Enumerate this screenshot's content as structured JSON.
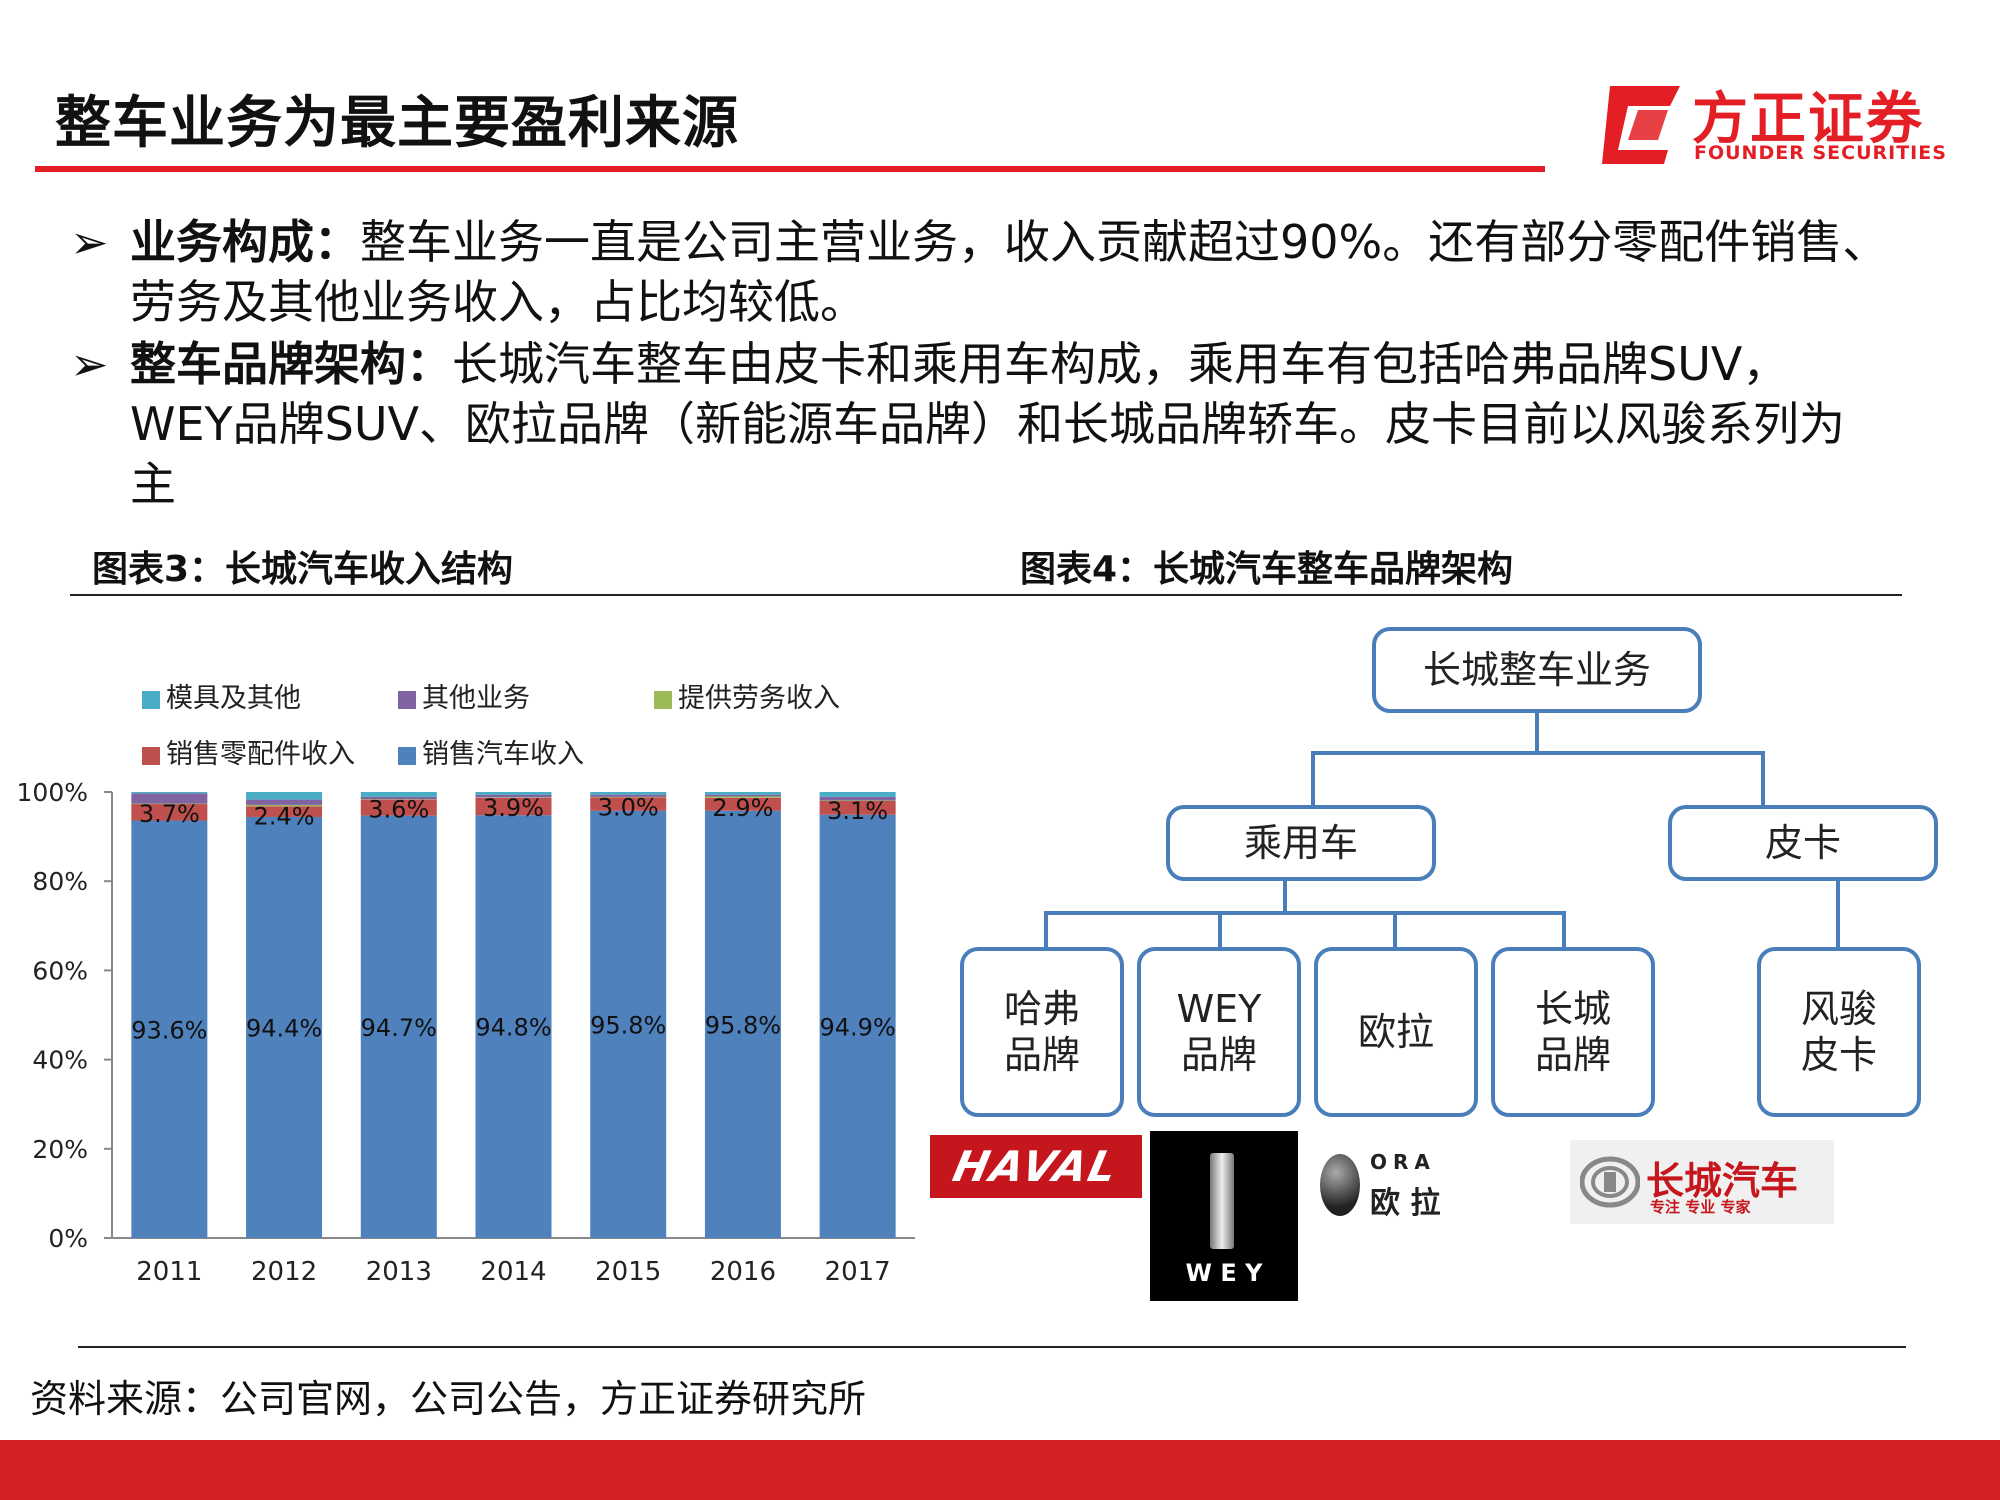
{
  "header": {
    "title": "整车业务为最主要盈利来源"
  },
  "logo": {
    "name": "方正证券",
    "subtitle": "FOUNDER SECURITIES"
  },
  "bullets": [
    {
      "marker": "➢",
      "heading": "业务构成：",
      "text": "整车业务一直是公司主营业务，收入贡献超过90%。还有部分零配件销售、劳务及其他业务收入，占比均较低。"
    },
    {
      "marker": "➢",
      "heading": "整车品牌架构：",
      "text": "长城汽车整车由皮卡和乘用车构成，乘用车有包括哈弗品牌SUV，WEY品牌SUV、欧拉品牌（新能源车品牌）和长城品牌轿车。皮卡目前以风骏系列为主"
    }
  ],
  "figure3": {
    "caption": "图表3：长城汽车收入结构"
  },
  "figure4": {
    "caption": "图表4：长城汽车整车品牌架构"
  },
  "chart_data": {
    "type": "bar",
    "stacked": true,
    "categories": [
      "2011",
      "2012",
      "2013",
      "2014",
      "2015",
      "2016",
      "2017"
    ],
    "series": [
      {
        "name": "销售汽车收入",
        "values": [
          93.6,
          94.4,
          94.7,
          94.8,
          95.8,
          95.8,
          94.9
        ],
        "labels": [
          "93.6%",
          "94.4%",
          "94.7%",
          "94.8%",
          "95.8%",
          "95.8%",
          "94.9%"
        ],
        "color": "#4f81bd"
      },
      {
        "name": "销售零配件收入",
        "values": [
          3.7,
          2.4,
          3.6,
          3.9,
          3.0,
          2.9,
          3.1
        ],
        "labels": [
          "3.7%",
          "2.4%",
          "3.6%",
          "3.9%",
          "3.0%",
          "2.9%",
          "3.1%"
        ],
        "color": "#c0504d"
      },
      {
        "name": "提供劳务收入",
        "values": [
          0.1,
          0.3,
          0.1,
          0.1,
          0.1,
          0.3,
          0.1
        ],
        "color": "#9bbb59"
      },
      {
        "name": "其他业务",
        "values": [
          2.3,
          1.2,
          0.5,
          0.6,
          0.5,
          0.4,
          0.8
        ],
        "color": "#8064a2"
      },
      {
        "name": "模具及其他",
        "values": [
          0.3,
          1.7,
          1.1,
          0.6,
          0.6,
          0.6,
          1.1
        ],
        "color": "#4bacc6"
      }
    ],
    "legend": {
      "position": "top",
      "order": [
        "模具及其他",
        "其他业务",
        "提供劳务收入",
        "销售零配件收入",
        "销售汽车收入"
      ]
    },
    "yticks": [
      "0%",
      "20%",
      "40%",
      "60%",
      "80%",
      "100%"
    ],
    "ylim": [
      0,
      100
    ],
    "grid": false
  },
  "diagram": {
    "root": "长城整车业务",
    "level1": [
      "乘用车",
      "皮卡"
    ],
    "leaves": [
      {
        "l1": "哈弗",
        "l2": "品牌"
      },
      {
        "l1": "WEY",
        "l2": "品牌"
      },
      {
        "l1": "欧拉",
        "l2": ""
      },
      {
        "l1": "长城",
        "l2": "品牌"
      },
      {
        "l1": "风骏",
        "l2": "皮卡"
      }
    ],
    "brand_logos": {
      "haval": "HAVAL",
      "wey": "W E Y",
      "ora_en": "ORA",
      "ora_cn": "欧 拉",
      "greatwall_cn": "长城汽车",
      "greatwall_slogan": "专注 专业 专家"
    }
  },
  "source": "资料来源：公司官网，公司公告，方正证券研究所",
  "colors": {
    "accent": "#e31e24",
    "diagram_blue": "#4a7ebb",
    "footer": "#d41f26"
  }
}
